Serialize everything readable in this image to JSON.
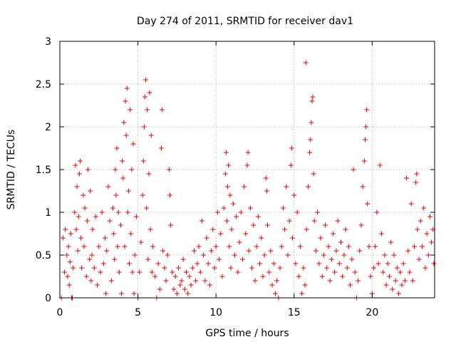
{
  "chart_data": {
    "type": "scatter",
    "title": "Day 274 of 2011, SRMTID for receiver dav1",
    "xlabel": "GPS time / hours",
    "ylabel": "SRMTID / TECUs",
    "xlim": [
      0,
      24
    ],
    "ylim": [
      0,
      3
    ],
    "x_ticks": [
      0,
      5,
      10,
      15,
      20
    ],
    "y_ticks": [
      0,
      0.5,
      1,
      1.5,
      2,
      2.5,
      3
    ],
    "x_tick_labels": [
      "0",
      "5",
      "10",
      "15",
      "20"
    ],
    "y_tick_labels": [
      "0",
      "0.5",
      "1",
      "1.5",
      "2",
      "2.5",
      "3"
    ],
    "grid": true,
    "marker": "+",
    "series_color": "#ee0000",
    "series": [
      {
        "name": "dav1",
        "points": [
          [
            0.1,
            0.0
          ],
          [
            0.2,
            0.7
          ],
          [
            0.3,
            0.3
          ],
          [
            0.35,
            0.8
          ],
          [
            0.45,
            0.5
          ],
          [
            0.5,
            0.25
          ],
          [
            0.55,
            0.6
          ],
          [
            0.6,
            0.15
          ],
          [
            0.65,
            0.42
          ],
          [
            0.7,
            0.75
          ],
          [
            0.75,
            0.0
          ],
          [
            0.8,
            0.0
          ],
          [
            0.85,
            0.35
          ],
          [
            0.95,
            1.0
          ],
          [
            1.0,
            1.55
          ],
          [
            1.05,
            0.8
          ],
          [
            1.1,
            1.3
          ],
          [
            1.15,
            0.55
          ],
          [
            1.2,
            0.95
          ],
          [
            1.25,
            1.45
          ],
          [
            1.3,
            1.6
          ],
          [
            1.35,
            0.7
          ],
          [
            1.4,
            0.35
          ],
          [
            1.5,
            1.2
          ],
          [
            1.55,
            0.6
          ],
          [
            1.6,
            1.05
          ],
          [
            1.7,
            0.25
          ],
          [
            1.75,
            0.9
          ],
          [
            1.8,
            1.5
          ],
          [
            1.9,
            0.45
          ],
          [
            1.95,
            1.25
          ],
          [
            2.0,
            0.2
          ],
          [
            2.05,
            0.5
          ],
          [
            2.1,
            0.8
          ],
          [
            2.2,
            0.35
          ],
          [
            2.3,
            0.95
          ],
          [
            2.4,
            0.15
          ],
          [
            2.5,
            0.6
          ],
          [
            2.6,
            0.3
          ],
          [
            2.7,
            1.0
          ],
          [
            2.8,
            0.4
          ],
          [
            2.9,
            0.7
          ],
          [
            2.95,
            0.05
          ],
          [
            3.0,
            0.55
          ],
          [
            3.1,
            1.3
          ],
          [
            3.2,
            0.9
          ],
          [
            3.3,
            0.2
          ],
          [
            3.4,
            1.05
          ],
          [
            3.45,
            0.75
          ],
          [
            3.5,
            0.45
          ],
          [
            3.55,
            1.5
          ],
          [
            3.6,
            1.2
          ],
          [
            3.65,
            1.75
          ],
          [
            3.7,
            0.6
          ],
          [
            3.75,
            1.0
          ],
          [
            3.8,
            0.3
          ],
          [
            3.9,
            0.85
          ],
          [
            3.95,
            0.05
          ],
          [
            4.0,
            1.6
          ],
          [
            4.05,
            1.4
          ],
          [
            4.1,
            2.05
          ],
          [
            4.15,
            0.6
          ],
          [
            4.2,
            2.3
          ],
          [
            4.25,
            1.9
          ],
          [
            4.3,
            2.45
          ],
          [
            4.35,
            1.0
          ],
          [
            4.4,
            1.25
          ],
          [
            4.45,
            0.4
          ],
          [
            4.5,
            2.2
          ],
          [
            4.55,
            0.75
          ],
          [
            4.6,
            1.5
          ],
          [
            4.65,
            0.3
          ],
          [
            4.7,
            1.8
          ],
          [
            4.75,
            0.05
          ],
          [
            4.8,
            0.5
          ],
          [
            4.9,
            0.95
          ],
          [
            5.0,
            0.0
          ],
          [
            5.1,
            0.3
          ],
          [
            5.2,
            0.65
          ],
          [
            5.3,
            1.2
          ],
          [
            5.35,
            1.6
          ],
          [
            5.4,
            2.0
          ],
          [
            5.45,
            2.35
          ],
          [
            5.5,
            2.55
          ],
          [
            5.55,
            1.05
          ],
          [
            5.6,
            2.2
          ],
          [
            5.65,
            0.45
          ],
          [
            5.7,
            1.45
          ],
          [
            5.75,
            2.4
          ],
          [
            5.8,
            0.8
          ],
          [
            5.85,
            1.9
          ],
          [
            5.9,
            0.3
          ],
          [
            5.95,
            0.6
          ],
          [
            6.1,
            0.25
          ],
          [
            6.2,
            0.0
          ],
          [
            6.3,
            0.4
          ],
          [
            6.4,
            0.1
          ],
          [
            6.5,
            1.75
          ],
          [
            6.55,
            2.2
          ],
          [
            6.6,
            0.55
          ],
          [
            6.7,
            0.35
          ],
          [
            6.8,
            0.2
          ],
          [
            6.9,
            0.5
          ],
          [
            7.0,
            1.5
          ],
          [
            7.05,
            1.2
          ],
          [
            7.1,
            0.85
          ],
          [
            7.2,
            0.3
          ],
          [
            7.3,
            0.1
          ],
          [
            7.4,
            0.25
          ],
          [
            7.5,
            0.05
          ],
          [
            7.6,
            0.35
          ],
          [
            7.7,
            0.15
          ],
          [
            7.8,
            0.2
          ],
          [
            7.9,
            0.45
          ],
          [
            8.0,
            0.1
          ],
          [
            8.1,
            0.3
          ],
          [
            8.2,
            0.05
          ],
          [
            8.3,
            0.25
          ],
          [
            8.4,
            0.15
          ],
          [
            8.5,
            0.35
          ],
          [
            8.6,
            0.55
          ],
          [
            8.7,
            0.2
          ],
          [
            8.8,
            0.4
          ],
          [
            8.9,
            0.6
          ],
          [
            9.0,
            0.3
          ],
          [
            9.1,
            0.9
          ],
          [
            9.2,
            0.5
          ],
          [
            9.3,
            0.2
          ],
          [
            9.4,
            0.7
          ],
          [
            9.5,
            0.4
          ],
          [
            9.6,
            0.15
          ],
          [
            9.7,
            0.55
          ],
          [
            9.8,
            0.8
          ],
          [
            9.9,
            0.35
          ],
          [
            10.0,
            0.6
          ],
          [
            10.1,
            1.0
          ],
          [
            10.2,
            0.45
          ],
          [
            10.3,
            0.75
          ],
          [
            10.4,
            0.25
          ],
          [
            10.5,
            1.05
          ],
          [
            10.6,
            1.45
          ],
          [
            10.65,
            1.7
          ],
          [
            10.7,
            0.9
          ],
          [
            10.75,
            1.3
          ],
          [
            10.8,
            1.55
          ],
          [
            10.85,
            0.6
          ],
          [
            10.9,
            1.2
          ],
          [
            10.95,
            0.35
          ],
          [
            11.0,
            0.8
          ],
          [
            11.1,
            1.1
          ],
          [
            11.2,
            0.5
          ],
          [
            11.3,
            0.95
          ],
          [
            11.4,
            0.3
          ],
          [
            11.5,
            0.65
          ],
          [
            11.6,
            1.0
          ],
          [
            11.7,
            0.45
          ],
          [
            11.8,
            1.3
          ],
          [
            11.9,
            0.75
          ],
          [
            12.0,
            1.55
          ],
          [
            12.05,
            1.7
          ],
          [
            12.1,
            0.55
          ],
          [
            12.2,
            1.05
          ],
          [
            12.3,
            0.35
          ],
          [
            12.4,
            0.85
          ],
          [
            12.5,
            0.2
          ],
          [
            12.6,
            0.6
          ],
          [
            12.7,
            0.95
          ],
          [
            12.8,
            0.4
          ],
          [
            12.9,
            0.7
          ],
          [
            13.0,
            0.25
          ],
          [
            13.1,
            0.5
          ],
          [
            13.2,
            1.4
          ],
          [
            13.25,
            1.25
          ],
          [
            13.3,
            0.85
          ],
          [
            13.4,
            0.3
          ],
          [
            13.5,
            0.55
          ],
          [
            13.6,
            0.15
          ],
          [
            13.7,
            0.4
          ],
          [
            13.8,
            0.05
          ],
          [
            13.9,
            0.2
          ],
          [
            14.0,
            0.0
          ],
          [
            14.1,
            0.35
          ],
          [
            14.2,
            0.6
          ],
          [
            14.3,
            1.05
          ],
          [
            14.4,
            0.8
          ],
          [
            14.5,
            1.3
          ],
          [
            14.6,
            0.5
          ],
          [
            14.7,
            0.9
          ],
          [
            14.8,
            1.55
          ],
          [
            14.85,
            1.75
          ],
          [
            14.9,
            0.7
          ],
          [
            15.0,
            1.2
          ],
          [
            15.1,
            0.4
          ],
          [
            15.2,
            1.0
          ],
          [
            15.3,
            0.25
          ],
          [
            15.4,
            0.6
          ],
          [
            15.5,
            0.05
          ],
          [
            15.6,
            0.35
          ],
          [
            15.7,
            0.15
          ],
          [
            15.75,
            2.75
          ],
          [
            15.8,
            0.8
          ],
          [
            15.9,
            1.3
          ],
          [
            16.0,
            1.7
          ],
          [
            16.05,
            1.85
          ],
          [
            16.1,
            2.05
          ],
          [
            16.15,
            2.3
          ],
          [
            16.2,
            2.35
          ],
          [
            16.25,
            1.45
          ],
          [
            16.3,
            0.9
          ],
          [
            16.4,
            0.55
          ],
          [
            16.5,
            1.0
          ],
          [
            16.6,
            0.4
          ],
          [
            16.7,
            0.7
          ],
          [
            16.8,
            0.25
          ],
          [
            16.9,
            0.5
          ],
          [
            17.0,
            0.85
          ],
          [
            17.1,
            0.35
          ],
          [
            17.2,
            0.6
          ],
          [
            17.3,
            0.2
          ],
          [
            17.4,
            0.45
          ],
          [
            17.5,
            0.75
          ],
          [
            17.6,
            0.3
          ],
          [
            17.7,
            0.55
          ],
          [
            17.8,
            0.9
          ],
          [
            17.9,
            0.4
          ],
          [
            18.0,
            0.65
          ],
          [
            18.1,
            0.25
          ],
          [
            18.2,
            0.5
          ],
          [
            18.3,
            0.8
          ],
          [
            18.4,
            0.35
          ],
          [
            18.5,
            0.6
          ],
          [
            18.6,
            0.15
          ],
          [
            18.7,
            0.45
          ],
          [
            18.8,
            1.5
          ],
          [
            18.9,
            0.3
          ],
          [
            19.0,
            0.0
          ],
          [
            19.1,
            0.2
          ],
          [
            19.2,
            0.55
          ],
          [
            19.3,
            0.85
          ],
          [
            19.4,
            1.3
          ],
          [
            19.5,
            1.6
          ],
          [
            19.55,
            1.85
          ],
          [
            19.6,
            2.0
          ],
          [
            19.65,
            2.2
          ],
          [
            19.7,
            1.1
          ],
          [
            19.8,
            0.6
          ],
          [
            19.9,
            0.25
          ],
          [
            20.0,
            0.05
          ],
          [
            20.1,
            0.35
          ],
          [
            20.2,
            0.6
          ],
          [
            20.3,
            1.0
          ],
          [
            20.4,
            0.4
          ],
          [
            20.5,
            1.55
          ],
          [
            20.6,
            0.75
          ],
          [
            20.7,
            0.3
          ],
          [
            20.8,
            0.5
          ],
          [
            20.9,
            0.15
          ],
          [
            21.0,
            0.4
          ],
          [
            21.1,
            0.25
          ],
          [
            21.2,
            0.65
          ],
          [
            21.3,
            0.1
          ],
          [
            21.4,
            0.5
          ],
          [
            21.5,
            0.2
          ],
          [
            21.6,
            0.35
          ],
          [
            21.7,
            0.05
          ],
          [
            21.8,
            0.3
          ],
          [
            21.9,
            0.15
          ],
          [
            22.0,
            0.4
          ],
          [
            22.1,
            0.2
          ],
          [
            22.2,
            1.4
          ],
          [
            22.3,
            0.55
          ],
          [
            22.4,
            0.3
          ],
          [
            22.5,
            1.1
          ],
          [
            22.6,
            0.2
          ],
          [
            22.7,
            0.6
          ],
          [
            22.8,
            1.35
          ],
          [
            22.85,
            1.45
          ],
          [
            22.9,
            0.8
          ],
          [
            23.0,
            0.45
          ],
          [
            23.1,
            0.9
          ],
          [
            23.2,
            0.6
          ],
          [
            23.3,
            1.05
          ],
          [
            23.4,
            0.35
          ],
          [
            23.5,
            0.75
          ],
          [
            23.6,
            0.5
          ],
          [
            23.7,
            0.95
          ],
          [
            23.8,
            0.65
          ],
          [
            23.9,
            0.8
          ],
          [
            23.95,
            0.4
          ]
        ]
      }
    ]
  }
}
